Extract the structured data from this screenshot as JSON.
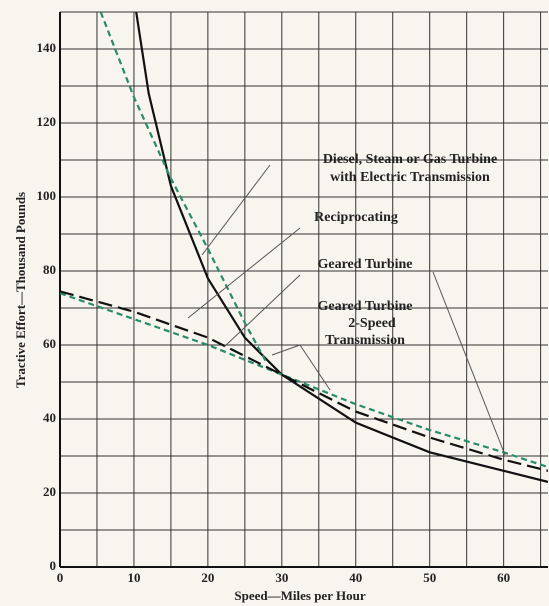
{
  "chart_data": {
    "type": "line",
    "xlabel": "Speed—Miles per Hour",
    "ylabel": "Tractive Effort—Thousand Pounds",
    "xlim": [
      0,
      66
    ],
    "ylim": [
      0,
      150
    ],
    "xticks": [
      0,
      10,
      20,
      30,
      40,
      50,
      60
    ],
    "yticks": [
      0,
      20,
      40,
      60,
      80,
      100,
      120,
      140
    ],
    "xminor": [
      5,
      15,
      25,
      35,
      45,
      55,
      65
    ],
    "yminor": [
      10,
      30,
      50,
      70,
      90,
      110,
      130,
      150
    ],
    "grid": true,
    "series": [
      {
        "color": "#111111",
        "dash": "solid",
        "x": [
          10.3,
          12,
          15,
          20,
          25,
          30,
          40,
          50,
          60,
          66
        ],
        "values": [
          150,
          128,
          103,
          78,
          62,
          52,
          39,
          31,
          26,
          23
        ]
      },
      {
        "color": "#2a8a6a",
        "dash": "short",
        "x": [
          5.5,
          10,
          15,
          20,
          25,
          28
        ],
        "values": [
          150,
          127,
          105,
          86,
          66,
          55
        ]
      },
      {
        "color": "#2a8a6a",
        "dash": "short",
        "x": [
          0,
          10,
          20,
          30,
          40,
          50,
          60,
          66
        ],
        "values": [
          74,
          67,
          60,
          52,
          44,
          37,
          31,
          27
        ]
      },
      {
        "color": "#111111",
        "dash": "long",
        "x": [
          0,
          10,
          20,
          30,
          40,
          50,
          60,
          66
        ],
        "values": [
          74.5,
          69,
          62,
          52,
          42,
          35,
          29,
          26
        ]
      }
    ],
    "annotations": [
      "Diesel, Steam or Gas Turbine",
      "with Electric Transmission",
      "Reciprocating",
      "Geared Turbine",
      "Geared Turbine",
      "2-Speed",
      "Transmission"
    ]
  }
}
